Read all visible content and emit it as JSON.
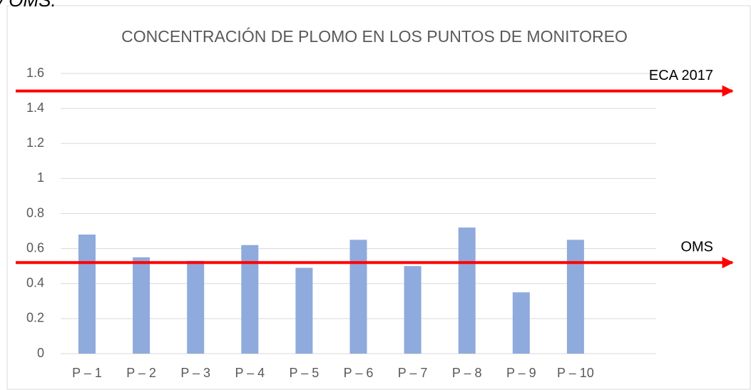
{
  "caption": "y OMS.",
  "chart_data": {
    "type": "bar",
    "title": "CONCENTRACIÓN DE PLOMO EN LOS PUNTOS DE MONITOREO",
    "categories": [
      "P – 1",
      "P – 2",
      "P – 3",
      "P – 4",
      "P – 5",
      "P – 6",
      "P – 7",
      "P – 8",
      "P – 9",
      "P – 10"
    ],
    "values": [
      0.68,
      0.55,
      0.53,
      0.62,
      0.49,
      0.65,
      0.5,
      0.72,
      0.35,
      0.65
    ],
    "color": "#8faadc",
    "ylim": [
      0,
      1.6
    ],
    "yticks": [
      0,
      0.2,
      0.4,
      0.6,
      0.8,
      1,
      1.2,
      1.4,
      1.6
    ],
    "grid": true,
    "reference_lines": [
      {
        "label": "ECA 2017",
        "value": 1.5,
        "color": "#ff0000"
      },
      {
        "label": "OMS",
        "value": 0.52,
        "color": "#ff0000"
      }
    ]
  }
}
